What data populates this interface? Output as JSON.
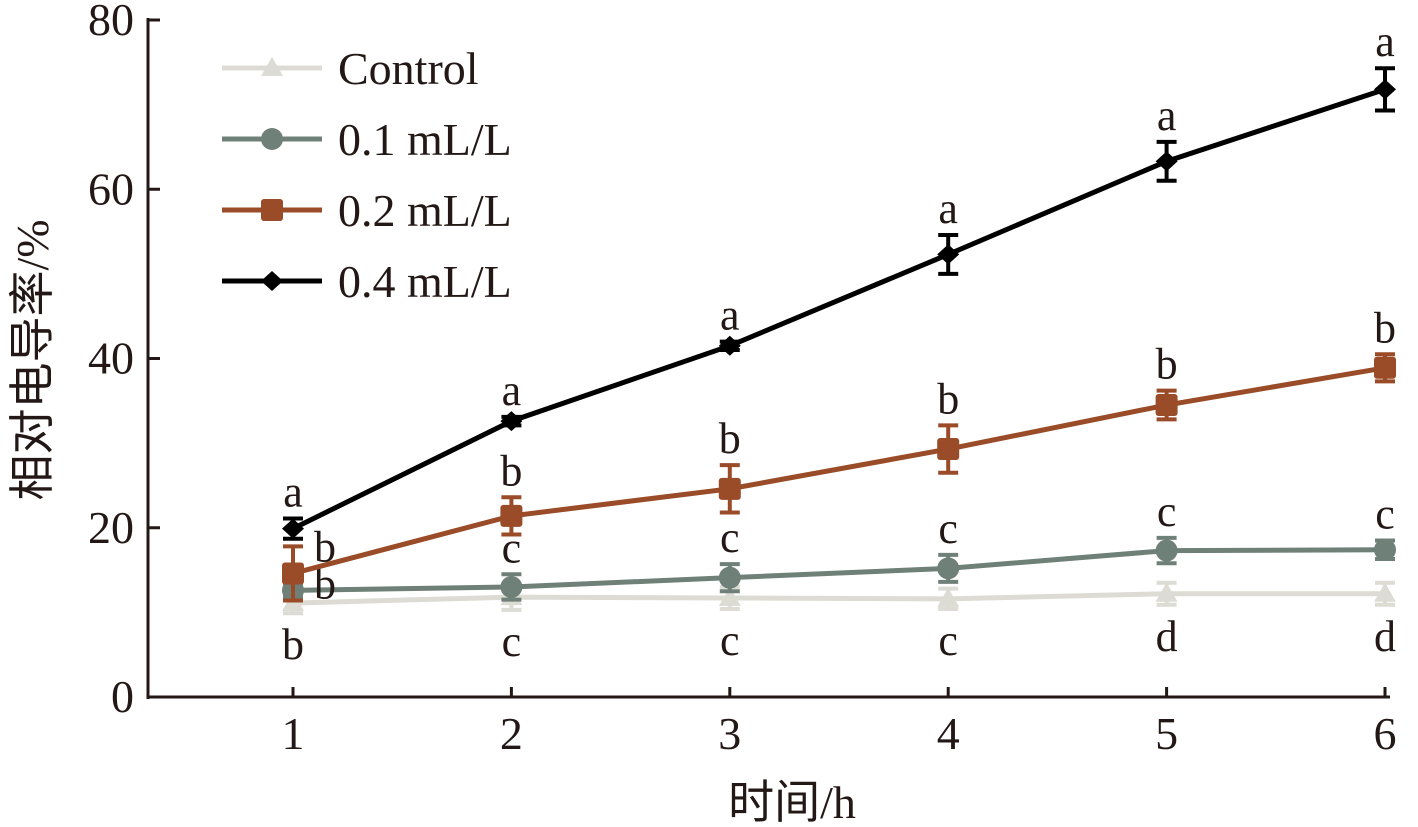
{
  "chart_data": {
    "type": "line",
    "title": "",
    "xlabel": "时间/h",
    "ylabel": "相对电导率/%",
    "x": [
      1,
      2,
      3,
      4,
      5,
      6
    ],
    "xticks": [
      "1",
      "2",
      "3",
      "4",
      "5",
      "6"
    ],
    "yticks": [
      "0",
      "20",
      "40",
      "60",
      "80"
    ],
    "ylim": [
      0,
      80
    ],
    "grid": false,
    "legend_position": "upper-left",
    "series": [
      {
        "name": "Control",
        "color": "#dcdcd4",
        "marker": "triangle",
        "values": [
          11.1,
          11.8,
          11.7,
          11.6,
          12.2,
          12.2
        ],
        "errors": [
          1.2,
          1.5,
          1.3,
          1.2,
          1.3,
          1.3
        ],
        "letters": [
          "b",
          "c",
          "c",
          "c",
          "d",
          "d"
        ],
        "letter_position": "below"
      },
      {
        "name": "0.1 mL/L",
        "color": "#6f8079",
        "marker": "circle",
        "values": [
          12.6,
          13.0,
          14.1,
          15.2,
          17.3,
          17.4
        ],
        "errors": [
          0.8,
          1.5,
          1.6,
          1.6,
          1.5,
          1.1
        ],
        "letters": [
          "b",
          "c",
          "c",
          "c",
          "c",
          "c"
        ],
        "letter_position": "above"
      },
      {
        "name": "0.2 mL/L",
        "color": "#9a4b27",
        "marker": "square",
        "values": [
          14.6,
          21.4,
          24.6,
          29.3,
          34.5,
          38.9
        ],
        "errors": [
          3.2,
          2.2,
          2.8,
          2.8,
          1.7,
          1.6
        ],
        "letters": [
          "b",
          "b",
          "b",
          "b",
          "b",
          "b"
        ],
        "letter_position": "above"
      },
      {
        "name": "0.4 mL/L",
        "color": "#000000",
        "marker": "diamond",
        "values": [
          19.9,
          32.6,
          41.5,
          52.3,
          63.3,
          71.8
        ],
        "errors": [
          1.2,
          0.5,
          0.5,
          2.3,
          2.3,
          2.5
        ],
        "letters": [
          "a",
          "a",
          "a",
          "a",
          "a",
          "a"
        ],
        "letter_position": "above"
      }
    ]
  }
}
